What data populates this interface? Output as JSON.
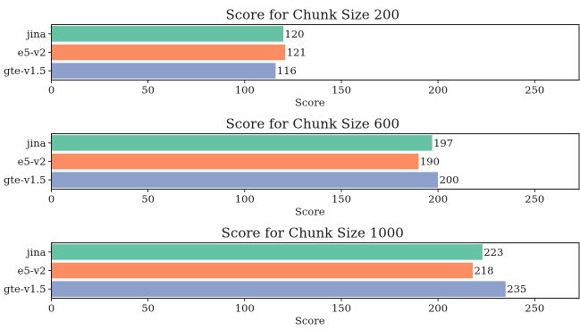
{
  "colors": {
    "jina": "#66c2a5",
    "e5-v2": "#fc8d62",
    "gte-v1.5": "#8da0cb",
    "axis": "#000000"
  },
  "chart_data": [
    {
      "type": "bar",
      "orientation": "horizontal",
      "title": "Score for Chunk Size 200",
      "xlabel": "Score",
      "ylabel": "",
      "categories": [
        "jina",
        "e5-v2",
        "gte-v1.5"
      ],
      "values": [
        120,
        121,
        116
      ],
      "xlim": [
        0,
        273
      ],
      "xticks": [
        0,
        50,
        100,
        150,
        200,
        250
      ],
      "grid": false
    },
    {
      "type": "bar",
      "orientation": "horizontal",
      "title": "Score for Chunk Size 600",
      "xlabel": "Score",
      "ylabel": "",
      "categories": [
        "jina",
        "e5-v2",
        "gte-v1.5"
      ],
      "values": [
        197,
        190,
        200
      ],
      "xlim": [
        0,
        273
      ],
      "xticks": [
        0,
        50,
        100,
        150,
        200,
        250
      ],
      "grid": false
    },
    {
      "type": "bar",
      "orientation": "horizontal",
      "title": "Score for Chunk Size 1000",
      "xlabel": "Score",
      "ylabel": "",
      "categories": [
        "jina",
        "e5-v2",
        "gte-v1.5"
      ],
      "values": [
        223,
        218,
        235
      ],
      "xlim": [
        0,
        273
      ],
      "xticks": [
        0,
        50,
        100,
        150,
        200,
        250
      ],
      "grid": false
    }
  ]
}
